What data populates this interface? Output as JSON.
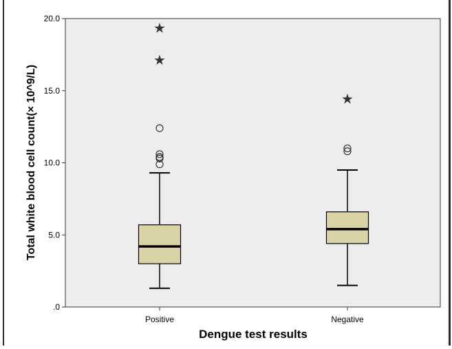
{
  "chart_data": {
    "type": "boxplot",
    "xlabel": "Dengue test results",
    "ylabel": "Total white blood cell count(× 10^9/L)",
    "ylim": [
      0,
      20
    ],
    "yticks": [
      {
        "value": 0,
        "label": ".0"
      },
      {
        "value": 5,
        "label": "5.0"
      },
      {
        "value": 10,
        "label": "10.0"
      },
      {
        "value": 15,
        "label": "15.0"
      },
      {
        "value": 20,
        "label": "20.0"
      }
    ],
    "grid": false,
    "colors": {
      "box_fill": "#d9d3a6",
      "plot_background": "#ededed",
      "median": "#000000",
      "whisker": "#000000"
    },
    "categories": [
      "Positive",
      "Negative"
    ],
    "boxes": [
      {
        "category": "Positive",
        "whisker_low": 1.3,
        "q1": 3.0,
        "median": 4.2,
        "q3": 5.7,
        "whisker_high": 9.3,
        "outliers": [
          9.9,
          10.3,
          10.4,
          10.6,
          12.4
        ],
        "extremes": [
          17.1,
          19.3
        ]
      },
      {
        "category": "Negative",
        "whisker_low": 1.5,
        "q1": 4.4,
        "median": 5.4,
        "q3": 6.6,
        "whisker_high": 9.5,
        "outliers": [
          10.8,
          11.0
        ],
        "extremes": [
          14.4
        ]
      }
    ]
  }
}
